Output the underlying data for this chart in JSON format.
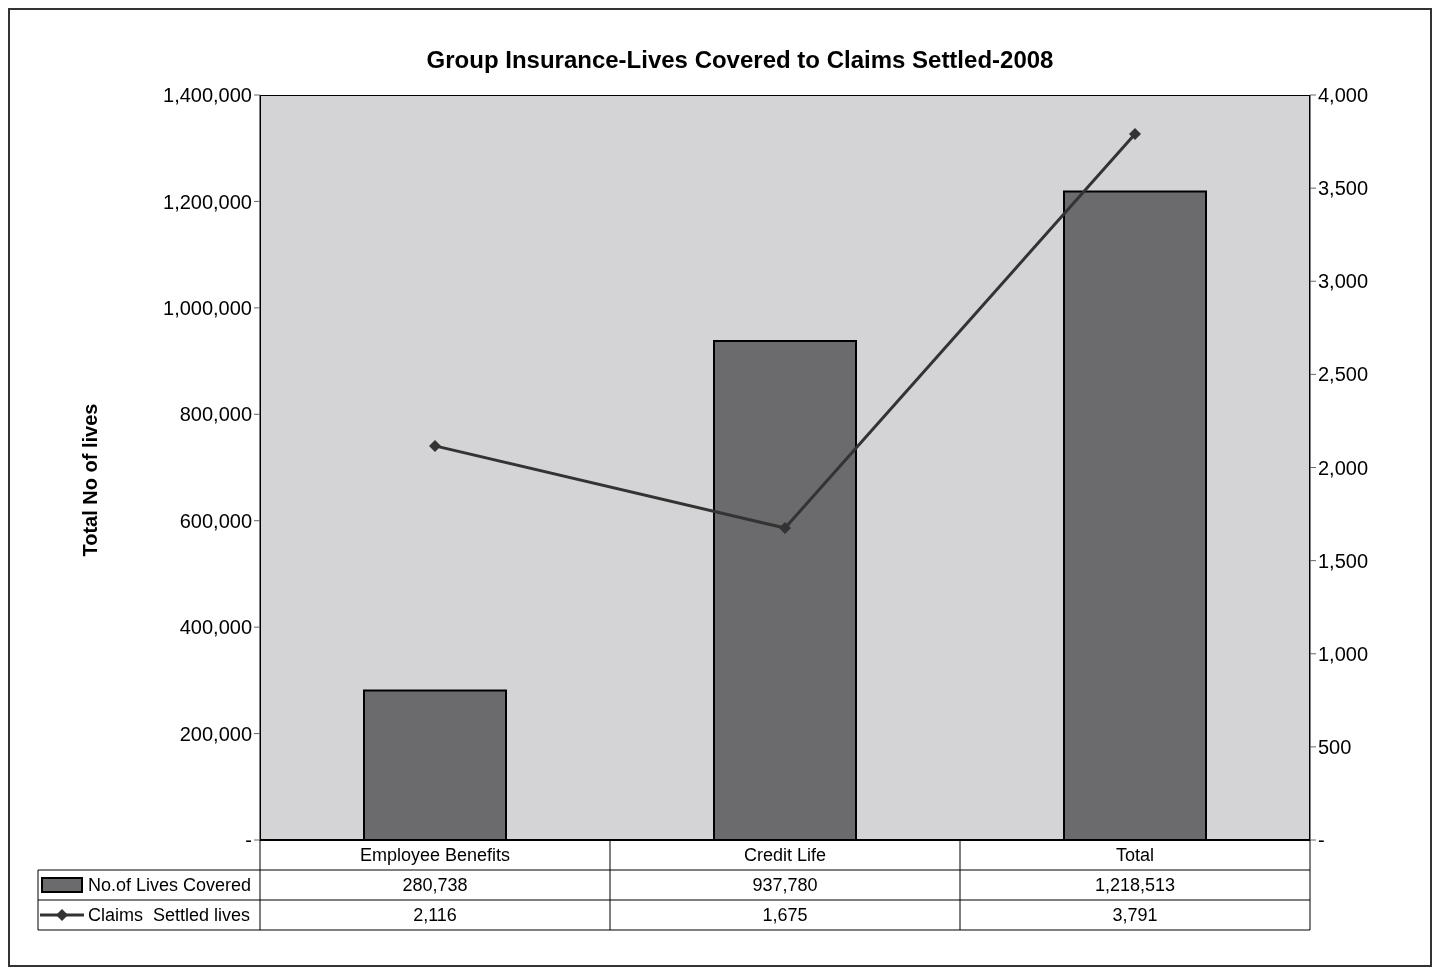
{
  "chart_data": {
    "type": "bar",
    "title": "Group Insurance-Lives Covered to Claims Settled-2008",
    "ylabel": "Total No of lives",
    "categories": [
      "Employee Benefits",
      "Credit Life",
      "Total"
    ],
    "series": [
      {
        "name": "No.of Lives Covered",
        "color": "#6b6b6d",
        "values": [
          280738,
          937780,
          1218513
        ],
        "value_labels": [
          "280,738",
          "937,780",
          "1,218,513"
        ]
      },
      {
        "name": "Claims  Settled lives",
        "type": "line",
        "axis": "y2",
        "color": "#333333",
        "values": [
          2116,
          1675,
          3791
        ],
        "value_labels": [
          "2,116",
          "1,675",
          "3,791"
        ]
      }
    ],
    "ylim": [
      0,
      1400000
    ],
    "yticks": [
      {
        "value": 0,
        "label": "-"
      },
      {
        "value": 200000,
        "label": "200,000"
      },
      {
        "value": 400000,
        "label": "400,000"
      },
      {
        "value": 600000,
        "label": "600,000"
      },
      {
        "value": 800000,
        "label": "800,000"
      },
      {
        "value": 1000000,
        "label": "1,000,000"
      },
      {
        "value": 1200000,
        "label": "1,200,000"
      },
      {
        "value": 1400000,
        "label": "1,400,000"
      }
    ],
    "y2lim": [
      0,
      4000
    ],
    "y2ticks": [
      {
        "value": 0,
        "label": "-"
      },
      500,
      {
        "value": 1000,
        "label": "1,000"
      },
      {
        "value": 1500,
        "label": "1,500"
      },
      {
        "value": 2000,
        "label": "2,000"
      },
      {
        "value": 2500,
        "label": "2,500"
      },
      {
        "value": 3000,
        "label": "3,000"
      },
      {
        "value": 3500,
        "label": "3,500"
      },
      {
        "value": 4000,
        "label": "4,000"
      }
    ],
    "marker": "diamond",
    "legend": "bottom left"
  }
}
